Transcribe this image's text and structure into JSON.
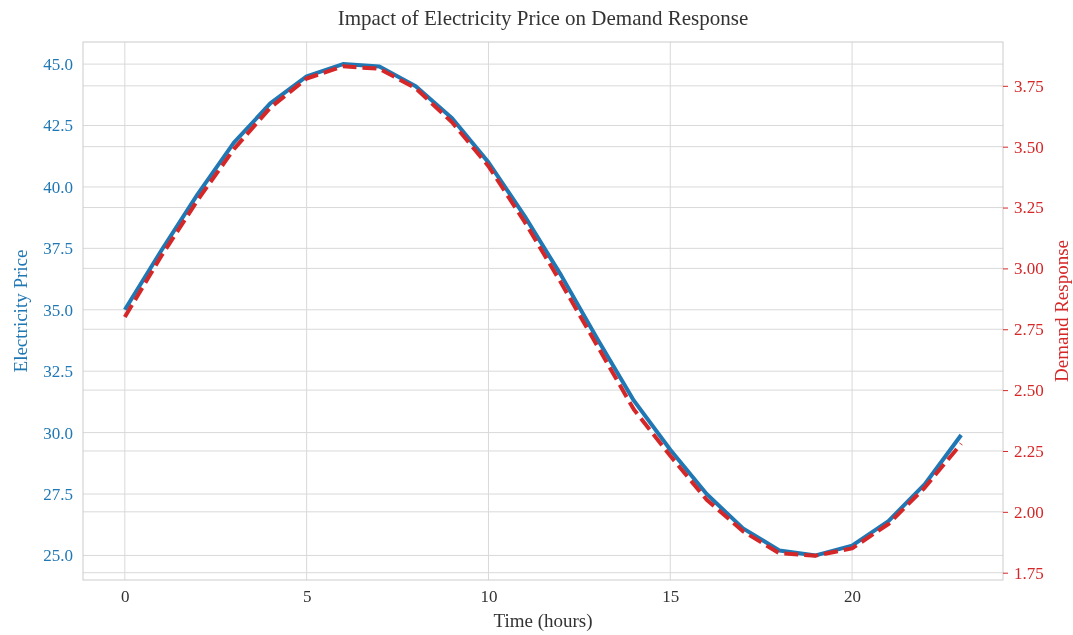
{
  "chart_data": {
    "type": "line",
    "title": "Impact of Electricity Price on Demand Response",
    "xlabel": "Time (hours)",
    "ylabel": "Electricity Price",
    "y2label": "Demand Response",
    "x": [
      0,
      1,
      2,
      3,
      4,
      5,
      6,
      7,
      8,
      9,
      10,
      11,
      12,
      13,
      14,
      15,
      16,
      17,
      18,
      19,
      20,
      21,
      22,
      23
    ],
    "series": [
      {
        "color": "#1f77b4",
        "line_style": "solid",
        "values": [
          35.0,
          37.4,
          39.7,
          41.8,
          43.4,
          44.5,
          45.0,
          44.9,
          44.1,
          42.8,
          41.0,
          38.8,
          36.4,
          33.8,
          31.3,
          29.3,
          27.5,
          26.1,
          25.2,
          25.0,
          25.4,
          26.4,
          27.9,
          29.9
        ]
      },
      {
        "color": "#d62728",
        "line_style": "dashed",
        "axis": "y2",
        "values": [
          2.8,
          3.05,
          3.28,
          3.49,
          3.66,
          3.78,
          3.83,
          3.82,
          3.74,
          3.6,
          3.42,
          3.19,
          2.94,
          2.68,
          2.42,
          2.23,
          2.05,
          1.92,
          1.83,
          1.82,
          1.85,
          1.95,
          2.1,
          2.28
        ]
      }
    ],
    "xlim": [
      -1.15,
      24.15
    ],
    "xticks": [
      0,
      5,
      10,
      15,
      20
    ],
    "ylim": [
      24.0,
      45.9
    ],
    "yticks": [
      {
        "value": 25,
        "label": "25.0"
      },
      {
        "value": 27.5,
        "label": "27.5"
      },
      {
        "value": 30,
        "label": "30.0"
      },
      {
        "value": 32.5,
        "label": "32.5"
      },
      {
        "value": 35,
        "label": "35.0"
      },
      {
        "value": 37.5,
        "label": "37.5"
      },
      {
        "value": 40,
        "label": "40.0"
      },
      {
        "value": 42.5,
        "label": "42.5"
      },
      {
        "value": 45,
        "label": "45.0"
      }
    ],
    "y2lim": [
      1.72,
      3.93
    ],
    "y2ticks": [
      {
        "value": 1.75,
        "label": "1.75"
      },
      {
        "value": 2,
        "label": "2.00"
      },
      {
        "value": 2.25,
        "label": "2.25"
      },
      {
        "value": 2.5,
        "label": "2.50"
      },
      {
        "value": 2.75,
        "label": "2.75"
      },
      {
        "value": 3,
        "label": "3.00"
      },
      {
        "value": 3.25,
        "label": "3.25"
      },
      {
        "value": 3.5,
        "label": "3.50"
      },
      {
        "value": 3.75,
        "label": "3.75"
      }
    ],
    "grid": true
  }
}
